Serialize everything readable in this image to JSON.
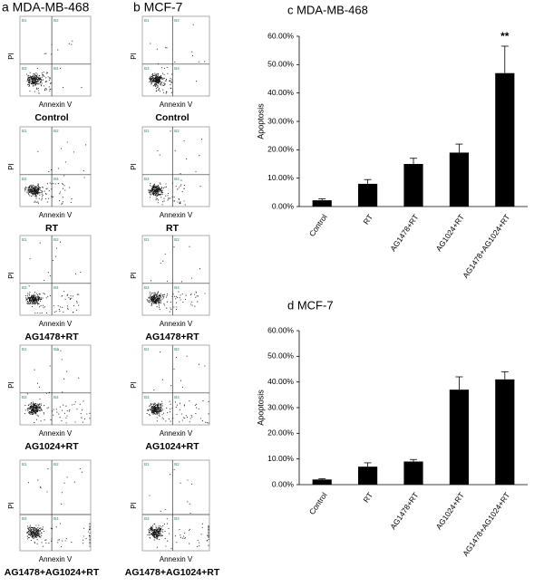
{
  "flow": [
    {
      "title": "a MDA-MB-468",
      "x_label": "Annexin V",
      "y_label": "PI",
      "quadrants": [
        "B1",
        "B2",
        "B3",
        "B4"
      ],
      "conditions": [
        "Control",
        "RT",
        "AG1478+RT",
        "AG1024+RT",
        "AG1478+AG1024+RT"
      ]
    },
    {
      "title": "b MCF-7",
      "x_label": "Annexin V",
      "y_label": "PI",
      "quadrants": [
        "B1",
        "B2",
        "B3",
        "B4"
      ],
      "conditions": [
        "Control",
        "RT",
        "AG1478+RT",
        "AG1024+RT",
        "AG1478+AG1024+RT"
      ]
    }
  ],
  "chart_data": [
    {
      "type": "bar",
      "title": "c MDA-MB-468",
      "y_label": "Apoptosis",
      "color": "#000000",
      "categories": [
        "Control",
        "RT",
        "AG1478+RT",
        "AG1024+RT",
        "AG1478+AG1024+RT"
      ],
      "values": [
        2.2,
        8,
        15,
        19,
        47
      ],
      "errors": [
        0.5,
        1.5,
        2,
        3,
        9.5
      ],
      "annotation": "**",
      "ylim": [
        0,
        60
      ],
      "yticks": [
        {
          "value": 0,
          "label": "0.00%"
        },
        {
          "value": 10,
          "label": "10.00%"
        },
        {
          "value": 20,
          "label": "20.00%"
        },
        {
          "value": 30,
          "label": "30.00%"
        },
        {
          "value": 40,
          "label": "40.00%"
        },
        {
          "value": 50,
          "label": "50.00%"
        },
        {
          "value": 60,
          "label": "60.00%"
        }
      ]
    },
    {
      "type": "bar",
      "title": "d MCF-7",
      "y_label": "Apoptosis",
      "color": "#000000",
      "categories": [
        "Control",
        "RT",
        "AG1478+RT",
        "AG1024+RT",
        "AG1478+AG1024+RT"
      ],
      "values": [
        2,
        7,
        9,
        37,
        41
      ],
      "errors": [
        0.3,
        1.5,
        0.8,
        5,
        3
      ],
      "ylim": [
        0,
        60
      ],
      "yticks": [
        {
          "value": 0,
          "label": "0.00%"
        },
        {
          "value": 10,
          "label": "10.00%"
        },
        {
          "value": 20,
          "label": "20.00%"
        },
        {
          "value": 30,
          "label": "30.00%"
        },
        {
          "value": 40,
          "label": "40.00%"
        },
        {
          "value": 50,
          "label": "50.00%"
        },
        {
          "value": 60,
          "label": "60.00%"
        }
      ]
    }
  ]
}
